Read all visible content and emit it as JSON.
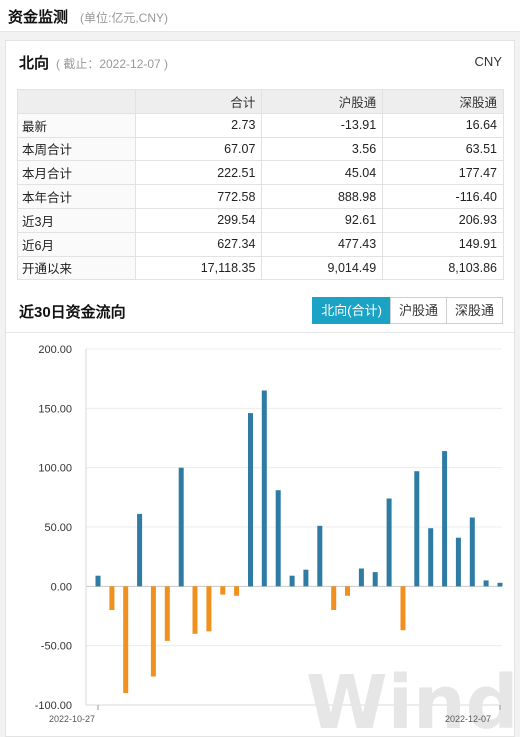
{
  "header": {
    "title": "资金监测",
    "unit": "(单位:亿元,CNY)"
  },
  "northbound": {
    "title": "北向",
    "date_note": "( 截止：2022-12-07 )",
    "currency": "CNY",
    "columns": [
      "",
      "合计",
      "沪股通",
      "深股通"
    ],
    "rows": [
      {
        "label": "最新",
        "total": "2.73",
        "sh": "-13.91",
        "sz": "16.64"
      },
      {
        "label": "本周合计",
        "total": "67.07",
        "sh": "3.56",
        "sz": "63.51"
      },
      {
        "label": "本月合计",
        "total": "222.51",
        "sh": "45.04",
        "sz": "177.47"
      },
      {
        "label": "本年合计",
        "total": "772.58",
        "sh": "888.98",
        "sz": "-116.40"
      },
      {
        "label": "近3月",
        "total": "299.54",
        "sh": "92.61",
        "sz": "206.93"
      },
      {
        "label": "近6月",
        "total": "627.34",
        "sh": "477.43",
        "sz": "149.91"
      },
      {
        "label": "开通以来",
        "total": "17,118.35",
        "sh": "9,014.49",
        "sz": "8,103.86"
      }
    ]
  },
  "flow": {
    "title": "近30日资金流向",
    "tabs": [
      "北向(合计)",
      "沪股通",
      "深股通"
    ],
    "active_tab": 0
  },
  "watermark": "Wind",
  "chart_data": {
    "type": "bar",
    "ylim": [
      -100,
      200
    ],
    "yticks": [
      "200.00",
      "150.00",
      "100.00",
      "50.00",
      "0.00",
      "-50.00",
      "-100.00"
    ],
    "ytick_values": [
      200,
      150,
      100,
      50,
      0,
      -50,
      -100
    ],
    "x_start_label": "2022-10-27",
    "x_end_label": "2022-12-07",
    "positive_color": "#2e7ca3",
    "negative_color": "#f0901e",
    "values": [
      9,
      -20,
      -90,
      61,
      -76,
      -46,
      100,
      -40,
      -38,
      -7,
      -8,
      146,
      165,
      81,
      9,
      14,
      51,
      -20,
      -8,
      15,
      12,
      74,
      -37,
      97,
      49,
      114,
      41,
      58,
      5,
      3
    ]
  }
}
